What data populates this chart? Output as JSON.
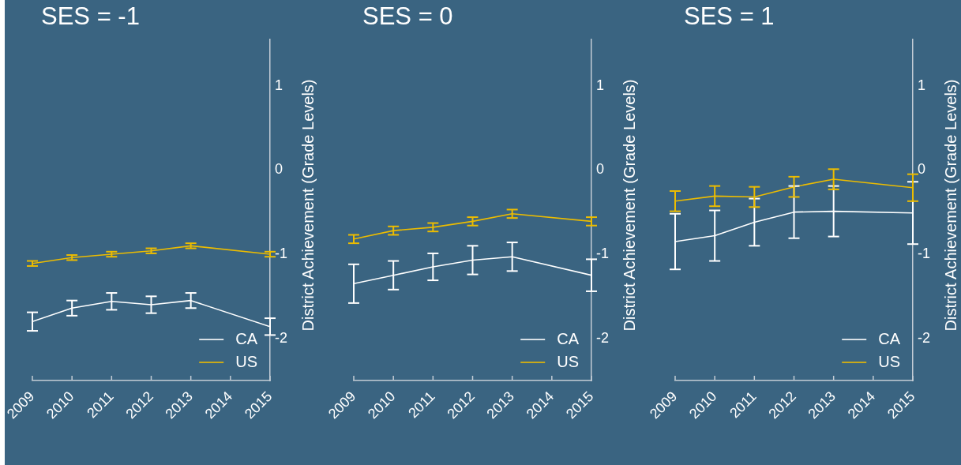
{
  "chart_data": [
    {
      "type": "line",
      "title": "SES = -1",
      "ylabel": "District Achievement (Grade Levels)",
      "x": [
        2009,
        2010,
        2011,
        2012,
        2013,
        2015
      ],
      "xlim": [
        2009,
        2015
      ],
      "xticks": [
        2009,
        2010,
        2011,
        2012,
        2013,
        2014,
        2015
      ],
      "ylim": [
        -2.5,
        1.55
      ],
      "yticks": [
        -2,
        -1,
        0,
        1
      ],
      "legend": "bottom right",
      "marker": "none",
      "series": [
        {
          "name": "CA",
          "color": "#ffffff",
          "values": [
            -1.8,
            -1.64,
            -1.56,
            -1.6,
            -1.55,
            -1.86
          ],
          "errors": [
            0.11,
            0.09,
            0.1,
            0.1,
            0.09,
            0.1
          ]
        },
        {
          "name": "US",
          "color": "#ecbc00",
          "values": [
            -1.11,
            -1.04,
            -1.0,
            -0.96,
            -0.9,
            -1.0
          ],
          "errors": [
            0.03,
            0.03,
            0.03,
            0.03,
            0.03,
            0.03
          ]
        }
      ]
    },
    {
      "type": "line",
      "title": "SES = 0",
      "ylabel": "District Achievement (Grade Levels)",
      "x": [
        2009,
        2010,
        2011,
        2012,
        2013,
        2015
      ],
      "xlim": [
        2009,
        2015
      ],
      "xticks": [
        2009,
        2010,
        2011,
        2012,
        2013,
        2014,
        2015
      ],
      "ylim": [
        -2.5,
        1.55
      ],
      "yticks": [
        -2,
        -1,
        0,
        1
      ],
      "legend": "bottom right",
      "marker": "none",
      "series": [
        {
          "name": "CA",
          "color": "#ffffff",
          "values": [
            -1.35,
            -1.25,
            -1.15,
            -1.07,
            -1.03,
            -1.25
          ],
          "errors": [
            0.23,
            0.17,
            0.16,
            0.17,
            0.17,
            0.19
          ]
        },
        {
          "name": "US",
          "color": "#ecbc00",
          "values": [
            -0.82,
            -0.72,
            -0.68,
            -0.61,
            -0.52,
            -0.61
          ],
          "errors": [
            0.05,
            0.05,
            0.05,
            0.05,
            0.05,
            0.05
          ]
        }
      ]
    },
    {
      "type": "line",
      "title": "SES = 1",
      "ylabel": "District Achievement (Grade Levels)",
      "x": [
        2009,
        2010,
        2011,
        2012,
        2013,
        2015
      ],
      "xlim": [
        2009,
        2015
      ],
      "xticks": [
        2009,
        2010,
        2011,
        2012,
        2013,
        2014,
        2015
      ],
      "ylim": [
        -2.5,
        1.55
      ],
      "yticks": [
        -2,
        -1,
        0,
        1
      ],
      "legend": "bottom right",
      "marker": "none",
      "series": [
        {
          "name": "CA",
          "color": "#ffffff",
          "values": [
            -0.85,
            -0.78,
            -0.62,
            -0.5,
            -0.49,
            -0.51
          ],
          "errors": [
            0.33,
            0.3,
            0.28,
            0.31,
            0.3,
            0.37
          ]
        },
        {
          "name": "US",
          "color": "#ecbc00",
          "values": [
            -0.37,
            -0.31,
            -0.32,
            -0.2,
            -0.11,
            -0.21
          ],
          "errors": [
            0.12,
            0.12,
            0.12,
            0.12,
            0.12,
            0.16
          ]
        }
      ]
    }
  ]
}
